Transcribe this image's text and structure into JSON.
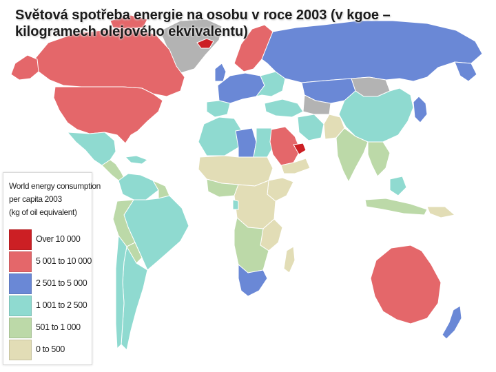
{
  "title": {
    "line1": "Světová spotřeba energie na osobu v roce 2003 (v kgoe –",
    "line2": "kilogramech olejového ekvivalentu)"
  },
  "legend": {
    "title_lines": [
      "World energy consumption",
      "per capita 2003",
      "(kg of oil equivalent)"
    ],
    "items": [
      {
        "label": "Over 10 000",
        "color": "#cc1f24"
      },
      {
        "label": "5 001 to 10 000",
        "color": "#e4676a"
      },
      {
        "label": "2 501 to 5 000",
        "color": "#6a88d6"
      },
      {
        "label": "1 001 to 2 500",
        "color": "#8fdad0"
      },
      {
        "label": "501 to 1 000",
        "color": "#bcd9a8"
      },
      {
        "label": "0 to 500",
        "color": "#e2ddb6"
      }
    ]
  },
  "colors": {
    "ocean": "#ffffff",
    "no_data": "#b3b3b3",
    "border": "#ffffff"
  }
}
